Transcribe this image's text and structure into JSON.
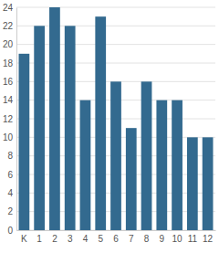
{
  "chart_data": {
    "type": "bar",
    "categories": [
      "K",
      "1",
      "2",
      "3",
      "4",
      "5",
      "6",
      "7",
      "8",
      "9",
      "10",
      "11",
      "12"
    ],
    "values": [
      19,
      22,
      24,
      22,
      14,
      23,
      16,
      11,
      16,
      14,
      14,
      10,
      10
    ],
    "color": "#336a8f",
    "ylim": [
      0,
      24
    ],
    "yticks": [
      0,
      2,
      4,
      6,
      8,
      10,
      12,
      14,
      16,
      18,
      20,
      22,
      24
    ],
    "grid": true
  }
}
